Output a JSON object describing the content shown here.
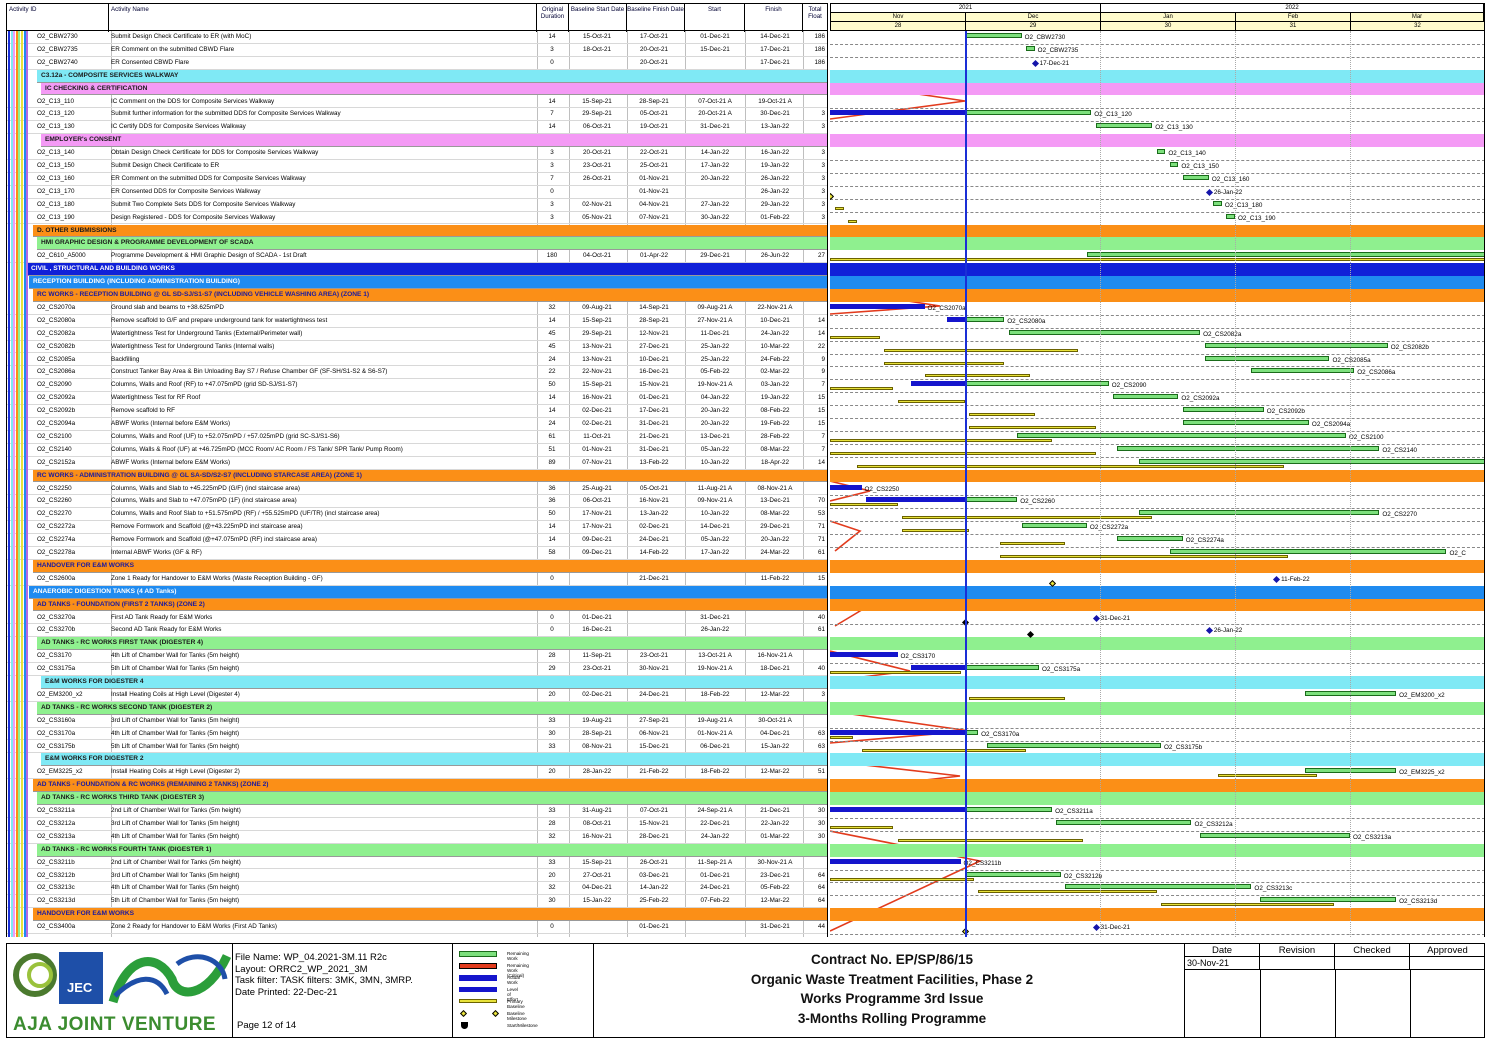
{
  "header": {
    "cols": {
      "activity_id": "Activity ID",
      "activity_name": "Activity Name",
      "orig_duration": "Original Duration",
      "baseline_start": "Baseline Start Date",
      "baseline_finish": "Baseline Finish Date",
      "start": "Start",
      "finish": "Finish",
      "total_float": "Total Float"
    },
    "timeline": {
      "years": [
        "2021",
        "2022"
      ],
      "months": [
        "Nov",
        "Dec",
        "Jan",
        "Feb",
        "Mar"
      ],
      "weeks": [
        "28",
        "29",
        "30",
        "31",
        "32"
      ]
    }
  },
  "colors": {
    "cyan": "#7fe9f5",
    "magenta": "#f49af5",
    "orange": "#fb8f17",
    "green": "#8ff08f",
    "blue": "#1020d8",
    "lightblue": "#1f8bf0",
    "remaining": "#7de07d",
    "critical": "#e23b1d",
    "actual": "#1515cc",
    "baseline": "#e8e23a",
    "data_date_line": "#1a2fd6"
  },
  "rows": [
    {
      "t": "a",
      "id": "O2_CBW2730",
      "name": "Submit Design Check Certificate to ER (with MoC)",
      "od": "14",
      "bs": "15-Oct-21",
      "bf": "17-Oct-21",
      "st": "01-Dec-21",
      "fi": "14-Dec-21",
      "tf": "186"
    },
    {
      "t": "a",
      "id": "O2_CBW2735",
      "name": "ER Comment on the submitted CBWD Flare",
      "od": "3",
      "bs": "18-Oct-21",
      "bf": "20-Oct-21",
      "st": "15-Dec-21",
      "fi": "17-Dec-21",
      "tf": "186"
    },
    {
      "t": "a",
      "id": "O2_CBW2740",
      "name": "ER Consented CBWD Flare",
      "od": "0",
      "bs": "",
      "bf": "20-Oct-21",
      "st": "",
      "fi": "17-Dec-21",
      "tf": "186"
    },
    {
      "t": "b",
      "c": "cyan",
      "x": 30,
      "name": "C3.12a - COMPOSITE SERVICES WALKWAY"
    },
    {
      "t": "b",
      "c": "magenta",
      "x": 34,
      "name": "IC CHECKING & CERTIFICATION"
    },
    {
      "t": "a",
      "id": "O2_C13_110",
      "name": "IC Comment on the DDS for Composite Services Walkway",
      "od": "14",
      "bs": "15-Sep-21",
      "bf": "28-Sep-21",
      "st": "07-Oct-21 A",
      "fi": "19-Oct-21 A",
      "tf": ""
    },
    {
      "t": "a",
      "id": "O2_C13_120",
      "name": "Submit further information for the submitted DDS for Composite Services Walkway",
      "od": "7",
      "bs": "29-Sep-21",
      "bf": "05-Oct-21",
      "st": "20-Oct-21 A",
      "fi": "30-Dec-21",
      "tf": "3"
    },
    {
      "t": "a",
      "id": "O2_C13_130",
      "name": "IC Certify DDS for Composite Services Walkway",
      "od": "14",
      "bs": "06-Oct-21",
      "bf": "19-Oct-21",
      "st": "31-Dec-21",
      "fi": "13-Jan-22",
      "tf": "3"
    },
    {
      "t": "b",
      "c": "magenta",
      "x": 34,
      "name": "EMPLOYER's CONSENT"
    },
    {
      "t": "a",
      "id": "O2_C13_140",
      "name": "Obtain Design Check Certificate for DDS for Composite Services Walkway",
      "od": "3",
      "bs": "20-Oct-21",
      "bf": "22-Oct-21",
      "st": "14-Jan-22",
      "fi": "16-Jan-22",
      "tf": "3"
    },
    {
      "t": "a",
      "id": "O2_C13_150",
      "name": "Submit Design Check Certificate to ER",
      "od": "3",
      "bs": "23-Oct-21",
      "bf": "25-Oct-21",
      "st": "17-Jan-22",
      "fi": "19-Jan-22",
      "tf": "3"
    },
    {
      "t": "a",
      "id": "O2_C13_160",
      "name": "ER Comment on the submitted DDS for Composite Services Walkway",
      "od": "7",
      "bs": "26-Oct-21",
      "bf": "01-Nov-21",
      "st": "20-Jan-22",
      "fi": "26-Jan-22",
      "tf": "3"
    },
    {
      "t": "a",
      "id": "O2_C13_170",
      "name": "ER Consented DDS for Composite Services Walkway",
      "od": "0",
      "bs": "",
      "bf": "01-Nov-21",
      "st": "",
      "fi": "26-Jan-22",
      "tf": "3"
    },
    {
      "t": "a",
      "id": "O2_C13_180",
      "name": "Submit Two Complete Sets DDS for Composite Services Walkway",
      "od": "3",
      "bs": "02-Nov-21",
      "bf": "04-Nov-21",
      "st": "27-Jan-22",
      "fi": "29-Jan-22",
      "tf": "3"
    },
    {
      "t": "a",
      "id": "O2_C13_190",
      "name": "Design Registered - DDS for Composite Services Walkway",
      "od": "3",
      "bs": "05-Nov-21",
      "bf": "07-Nov-21",
      "st": "30-Jan-22",
      "fi": "01-Feb-22",
      "tf": "3"
    },
    {
      "t": "b",
      "c": "orange",
      "x": 26,
      "name": "D. OTHER SUBMISSIONS"
    },
    {
      "t": "b",
      "c": "green",
      "x": 30,
      "name": "HMI GRAPHIC DESIGN & PROGRAMME DEVELOPMENT OF SCADA"
    },
    {
      "t": "a",
      "id": "O2_C610_A5000",
      "name": "Programme Development & HMI Graphic Design of SCADA - 1st Draft",
      "od": "180",
      "bs": "04-Oct-21",
      "bf": "01-Apr-22",
      "st": "29-Dec-21",
      "fi": "26-Jun-22",
      "tf": "27"
    },
    {
      "t": "b",
      "c": "blue",
      "x": 20,
      "name": "CIVIL , STRUCTURAL AND BUILDING WORKS",
      "fg": "#fff"
    },
    {
      "t": "b",
      "c": "lightblue",
      "x": 22,
      "name": "RECEPTION BUILDING (INCLUDING ADMINISTRATION BUILDING)",
      "fg": "#fff"
    },
    {
      "t": "b",
      "c": "orange",
      "x": 26,
      "name": "RC WORKS - RECEPTION BUILDING @ GL SD-SJ/S1-S7 (INCLUDING VEHICLE WASHING AREA) (ZONE 1)",
      "fg": "#1a1aa0"
    },
    {
      "t": "a",
      "id": "O2_CS2070a",
      "name": "Ground slab and beams to +38.625mPD",
      "od": "32",
      "bs": "09-Aug-21",
      "bf": "14-Sep-21",
      "st": "09-Aug-21 A",
      "fi": "22-Nov-21 A",
      "tf": ""
    },
    {
      "t": "a",
      "id": "O2_CS2080a",
      "name": "Remove scaffold to G/F and prepare underground tank for watertightness test",
      "od": "14",
      "bs": "15-Sep-21",
      "bf": "28-Sep-21",
      "st": "27-Nov-21 A",
      "fi": "10-Dec-21",
      "tf": "14"
    },
    {
      "t": "a",
      "id": "O2_CS2082a",
      "name": "Watertightness Test for Underground Tanks (External/Perimeter wall)",
      "od": "45",
      "bs": "29-Sep-21",
      "bf": "12-Nov-21",
      "st": "11-Dec-21",
      "fi": "24-Jan-22",
      "tf": "14"
    },
    {
      "t": "a",
      "id": "O2_CS2082b",
      "name": "Watertightness Test for Underground Tanks (Internal walls)",
      "od": "45",
      "bs": "13-Nov-21",
      "bf": "27-Dec-21",
      "st": "25-Jan-22",
      "fi": "10-Mar-22",
      "tf": "22"
    },
    {
      "t": "a",
      "id": "O2_CS2085a",
      "name": "Backfilling",
      "od": "24",
      "bs": "13-Nov-21",
      "bf": "10-Dec-21",
      "st": "25-Jan-22",
      "fi": "24-Feb-22",
      "tf": "9"
    },
    {
      "t": "a",
      "id": "O2_CS2086a",
      "name": "Construct Tanker Bay Area & Bin Unloading Bay S7 / Refuse Chamber GF (SF-SH/S1-S2 & S6-S7)",
      "od": "22",
      "bs": "22-Nov-21",
      "bf": "16-Dec-21",
      "st": "05-Feb-22",
      "fi": "02-Mar-22",
      "tf": "9"
    },
    {
      "t": "a",
      "id": "O2_CS2090",
      "name": "Columns, Walls and Roof (RF) to +47.075mPD (grid SD-SJ/S1-S7)",
      "od": "50",
      "bs": "15-Sep-21",
      "bf": "15-Nov-21",
      "st": "19-Nov-21 A",
      "fi": "03-Jan-22",
      "tf": "7"
    },
    {
      "t": "a",
      "id": "O2_CS2092a",
      "name": "Watertightness Test for RF Roof",
      "od": "14",
      "bs": "16-Nov-21",
      "bf": "01-Dec-21",
      "st": "04-Jan-22",
      "fi": "19-Jan-22",
      "tf": "15"
    },
    {
      "t": "a",
      "id": "O2_CS2092b",
      "name": "Remove scaffold to RF",
      "od": "14",
      "bs": "02-Dec-21",
      "bf": "17-Dec-21",
      "st": "20-Jan-22",
      "fi": "08-Feb-22",
      "tf": "15"
    },
    {
      "t": "a",
      "id": "O2_CS2094a",
      "name": "ABWF Works (Internal before E&M Works)",
      "od": "24",
      "bs": "02-Dec-21",
      "bf": "31-Dec-21",
      "st": "20-Jan-22",
      "fi": "19-Feb-22",
      "tf": "15"
    },
    {
      "t": "a",
      "id": "O2_CS2100",
      "name": "Columns, Walls and Roof (UF) to +52.075mPD / +57.025mPD (grid SC-SJ/S1-S6)",
      "od": "61",
      "bs": "11-Oct-21",
      "bf": "21-Dec-21",
      "st": "13-Dec-21",
      "fi": "28-Feb-22",
      "tf": "7"
    },
    {
      "t": "a",
      "id": "O2_CS2140",
      "name": "Columns, Walls & Roof (UF) at +46.725mPD (MCC Room/ AC Room / FS Tank/ SPR Tank/ Pump Room)",
      "od": "51",
      "bs": "01-Nov-21",
      "bf": "31-Dec-21",
      "st": "05-Jan-22",
      "fi": "08-Mar-22",
      "tf": "7"
    },
    {
      "t": "a",
      "id": "O2_CS2152a",
      "name": "ABWF Works (Internal before E&M Works)",
      "od": "89",
      "bs": "07-Nov-21",
      "bf": "13-Feb-22",
      "st": "10-Jan-22",
      "fi": "18-Apr-22",
      "tf": "14"
    },
    {
      "t": "b",
      "c": "orange",
      "x": 26,
      "name": "RC WORKS - ADMINISTRATION BUILDING @ GL SA-SD/S2-S7 (INCLUDING STARCASE AREA) (ZONE 1)",
      "fg": "#1a1aa0"
    },
    {
      "t": "a",
      "id": "O2_CS2250",
      "name": "Columns, Walls and Slab to +45.225mPD (G/F) (incl staircase area)",
      "od": "36",
      "bs": "25-Aug-21",
      "bf": "05-Oct-21",
      "st": "11-Aug-21 A",
      "fi": "08-Nov-21 A",
      "tf": ""
    },
    {
      "t": "a",
      "id": "O2_CS2260",
      "name": "Columns, Walls and Slab to +47.075mPD (1F) (incl staircase area)",
      "od": "36",
      "bs": "06-Oct-21",
      "bf": "16-Nov-21",
      "st": "09-Nov-21 A",
      "fi": "13-Dec-21",
      "tf": "70"
    },
    {
      "t": "a",
      "id": "O2_CS2270",
      "name": "Columns, Walls and Roof Slab to +51.575mPD (RF) / +55.525mPD (UF/TR) (incl staircase area)",
      "od": "50",
      "bs": "17-Nov-21",
      "bf": "13-Jan-22",
      "st": "10-Jan-22",
      "fi": "08-Mar-22",
      "tf": "53"
    },
    {
      "t": "a",
      "id": "O2_CS2272a",
      "name": "Remove Formwork and Scaffold (@+43.225mPD incl staircase area)",
      "od": "14",
      "bs": "17-Nov-21",
      "bf": "02-Dec-21",
      "st": "14-Dec-21",
      "fi": "29-Dec-21",
      "tf": "71"
    },
    {
      "t": "a",
      "id": "O2_CS2274a",
      "name": "Remove Formwork and Scaffold (@+47.075mPD (RF) incl staircase area)",
      "od": "14",
      "bs": "09-Dec-21",
      "bf": "24-Dec-21",
      "st": "05-Jan-22",
      "fi": "20-Jan-22",
      "tf": "71"
    },
    {
      "t": "a",
      "id": "O2_CS2278a",
      "name": "Internal ABWF Works (GF & RF)",
      "od": "58",
      "bs": "09-Dec-21",
      "bf": "14-Feb-22",
      "st": "17-Jan-22",
      "fi": "24-Mar-22",
      "tf": "61"
    },
    {
      "t": "b",
      "c": "orange",
      "x": 26,
      "name": "HANDOVER FOR E&M WORKS",
      "fg": "#1a1aa0"
    },
    {
      "t": "a",
      "id": "O2_CS2600a",
      "name": "Zone 1 Ready for Handover to E&M Works (Waste Reception Building - GF)",
      "od": "0",
      "bs": "",
      "bf": "21-Dec-21",
      "st": "",
      "fi": "11-Feb-22",
      "tf": "15"
    },
    {
      "t": "b",
      "c": "lightblue",
      "x": 22,
      "name": "ANAEROBIC DIGESTION TANKS (4 AD Tanks)",
      "fg": "#fff"
    },
    {
      "t": "b",
      "c": "orange",
      "x": 26,
      "name": "AD TANKS - FOUNDATION (FIRST 2 TANKS) (ZONE 2)",
      "fg": "#1a1aa0"
    },
    {
      "t": "a",
      "id": "O2_CS3270a",
      "name": "First AD Tank Ready for E&M Works",
      "od": "0",
      "bs": "01-Dec-21",
      "bf": "",
      "st": "31-Dec-21",
      "fi": "",
      "tf": "40"
    },
    {
      "t": "a",
      "id": "O2_CS3270b",
      "name": "Second AD Tank Ready for E&M Works",
      "od": "0",
      "bs": "16-Dec-21",
      "bf": "",
      "st": "26-Jan-22",
      "fi": "",
      "tf": "61"
    },
    {
      "t": "b",
      "c": "green",
      "x": 30,
      "name": "AD TANKS - RC WORKS FIRST TANK (DIGESTER 4)"
    },
    {
      "t": "a",
      "id": "O2_CS3170",
      "name": "4th Lift of Chamber Wall for Tanks (5m height)",
      "od": "28",
      "bs": "11-Sep-21",
      "bf": "23-Oct-21",
      "st": "13-Oct-21 A",
      "fi": "16-Nov-21 A",
      "tf": ""
    },
    {
      "t": "a",
      "id": "O2_CS3175a",
      "name": "5th Lift of Chamber Wall for Tanks (5m height)",
      "od": "29",
      "bs": "23-Oct-21",
      "bf": "30-Nov-21",
      "st": "19-Nov-21 A",
      "fi": "18-Dec-21",
      "tf": "40"
    },
    {
      "t": "b",
      "c": "cyan",
      "x": 34,
      "name": "E&M WORKS FOR DIGESTER 4"
    },
    {
      "t": "a",
      "id": "O2_EM3200_x2",
      "name": "Install Heating Coils at High Level (Digester 4)",
      "od": "20",
      "bs": "02-Dec-21",
      "bf": "24-Dec-21",
      "st": "18-Feb-22",
      "fi": "12-Mar-22",
      "tf": "3"
    },
    {
      "t": "b",
      "c": "green",
      "x": 30,
      "name": "AD TANKS - RC WORKS SECOND TANK (DIGESTER 2)"
    },
    {
      "t": "a",
      "id": "O2_CS3160a",
      "name": "3rd Lift of Chamber Wall for Tanks (5m height)",
      "od": "33",
      "bs": "19-Aug-21",
      "bf": "27-Sep-21",
      "st": "19-Aug-21 A",
      "fi": "30-Oct-21 A",
      "tf": ""
    },
    {
      "t": "a",
      "id": "O2_CS3170a",
      "name": "4th Lift of Chamber Wall for Tanks (5m height)",
      "od": "30",
      "bs": "28-Sep-21",
      "bf": "06-Nov-21",
      "st": "01-Nov-21 A",
      "fi": "04-Dec-21",
      "tf": "63"
    },
    {
      "t": "a",
      "id": "O2_CS3175b",
      "name": "5th Lift of Chamber Wall for Tanks (5m height)",
      "od": "33",
      "bs": "08-Nov-21",
      "bf": "15-Dec-21",
      "st": "06-Dec-21",
      "fi": "15-Jan-22",
      "tf": "63"
    },
    {
      "t": "b",
      "c": "cyan",
      "x": 34,
      "name": "E&M WORKS FOR DIGESTER 2"
    },
    {
      "t": "a",
      "id": "O2_EM3225_x2",
      "name": "Install Heating Coils at High Level (Digester 2)",
      "od": "20",
      "bs": "28-Jan-22",
      "bf": "21-Feb-22",
      "st": "18-Feb-22",
      "fi": "12-Mar-22",
      "tf": "51"
    },
    {
      "t": "b",
      "c": "orange",
      "x": 26,
      "name": "AD TANKS - FOUNDATION  & RC WORKS (REMAINING 2 TANKS) (ZONE 2)",
      "fg": "#1a1aa0"
    },
    {
      "t": "b",
      "c": "green",
      "x": 30,
      "name": "AD TANKS - RC WORKS THIRD TANK (DIGESTER 3)"
    },
    {
      "t": "a",
      "id": "O2_CS3211a",
      "name": "2nd Lift of Chamber Wall for Tanks (5m height)",
      "od": "33",
      "bs": "31-Aug-21",
      "bf": "07-Oct-21",
      "st": "24-Sep-21 A",
      "fi": "21-Dec-21",
      "tf": "30"
    },
    {
      "t": "a",
      "id": "O2_CS3212a",
      "name": "3rd Lift of Chamber Wall for Tanks (5m height)",
      "od": "28",
      "bs": "08-Oct-21",
      "bf": "15-Nov-21",
      "st": "22-Dec-21",
      "fi": "22-Jan-22",
      "tf": "30"
    },
    {
      "t": "a",
      "id": "O2_CS3213a",
      "name": "4th Lift of Chamber Wall for Tanks (5m height)",
      "od": "32",
      "bs": "16-Nov-21",
      "bf": "28-Dec-21",
      "st": "24-Jan-22",
      "fi": "01-Mar-22",
      "tf": "30"
    },
    {
      "t": "b",
      "c": "green",
      "x": 30,
      "name": "AD TANKS - RC WORKS FOURTH TANK (DIGESTER 1)"
    },
    {
      "t": "a",
      "id": "O2_CS3211b",
      "name": "2nd Lift of Chamber Wall for Tanks (5m height)",
      "od": "33",
      "bs": "15-Sep-21",
      "bf": "26-Oct-21",
      "st": "11-Sep-21 A",
      "fi": "30-Nov-21 A",
      "tf": ""
    },
    {
      "t": "a",
      "id": "O2_CS3212b",
      "name": "3rd Lift of Chamber Wall for Tanks (5m height)",
      "od": "20",
      "bs": "27-Oct-21",
      "bf": "03-Dec-21",
      "st": "01-Dec-21",
      "fi": "23-Dec-21",
      "tf": "64"
    },
    {
      "t": "a",
      "id": "O2_CS3213c",
      "name": "4th Lift of Chamber Wall for Tanks (5m height)",
      "od": "32",
      "bs": "04-Dec-21",
      "bf": "14-Jan-22",
      "st": "24-Dec-21",
      "fi": "05-Feb-22",
      "tf": "64"
    },
    {
      "t": "a",
      "id": "O2_CS3213d",
      "name": "5th Lift of Chamber Wall for Tanks (5m height)",
      "od": "30",
      "bs": "15-Jan-22",
      "bf": "25-Feb-22",
      "st": "07-Feb-22",
      "fi": "12-Mar-22",
      "tf": "64"
    },
    {
      "t": "b",
      "c": "orange",
      "x": 26,
      "name": "HANDOVER FOR E&M WORKS",
      "fg": "#1a1aa0"
    },
    {
      "t": "a",
      "id": "O2_CS3400a",
      "name": "Zone 2 Ready for Handover to E&M Works (First AD Tanks)",
      "od": "0",
      "bs": "",
      "bf": "01-Dec-21",
      "st": "",
      "fi": "31-Dec-21",
      "tf": "44"
    }
  ],
  "gantt_labels": [
    {
      "r": 0,
      "t": "O2_CBW2730"
    },
    {
      "r": 1,
      "t": "O2_CBW2735"
    },
    {
      "r": 2,
      "t": "17-Dec-21"
    },
    {
      "r": 6,
      "t": "O2_C13_120"
    },
    {
      "r": 7,
      "t": "O2_C13_130"
    },
    {
      "r": 9,
      "t": "O2_C13_140"
    },
    {
      "r": 10,
      "t": "O2_C13_150"
    },
    {
      "r": 11,
      "t": "O2_C13_160"
    },
    {
      "r": 12,
      "t": "26-Jan-22"
    },
    {
      "r": 13,
      "t": "O2_C13_180"
    },
    {
      "r": 14,
      "t": "O2_C13_190"
    },
    {
      "r": 21,
      "t": "O2_CS2070a"
    },
    {
      "r": 22,
      "t": "O2_CS2080a"
    },
    {
      "r": 23,
      "t": "O2_CS2082a"
    },
    {
      "r": 24,
      "t": "O2_CS2082b"
    },
    {
      "r": 25,
      "t": "O2_CS2085a"
    },
    {
      "r": 26,
      "t": "O2_CS2086a"
    },
    {
      "r": 27,
      "t": "O2_CS2090"
    },
    {
      "r": 28,
      "t": "O2_CS2092a"
    },
    {
      "r": 29,
      "t": "O2_CS2092b"
    },
    {
      "r": 30,
      "t": "O2_CS2094a"
    },
    {
      "r": 31,
      "t": "O2_CS2100"
    },
    {
      "r": 32,
      "t": "O2_CS2140"
    },
    {
      "r": 35,
      "t": "O2_CS2250"
    },
    {
      "r": 36,
      "t": "O2_CS2260"
    },
    {
      "r": 37,
      "t": "O2_CS2270"
    },
    {
      "r": 38,
      "t": "O2_CS2272a"
    },
    {
      "r": 39,
      "t": "O2_CS2274a"
    },
    {
      "r": 40,
      "t": "O2_C"
    },
    {
      "r": 42,
      "t": "11-Feb-22"
    },
    {
      "r": 45,
      "t": "31-Dec-21"
    },
    {
      "r": 46,
      "t": "26-Jan-22"
    },
    {
      "r": 48,
      "t": "O2_CS3170"
    },
    {
      "r": 49,
      "t": "O2_CS3175a"
    },
    {
      "r": 51,
      "t": "O2_EM3200_x2"
    },
    {
      "r": 53,
      "t": "O2_CS3160a"
    },
    {
      "r": 54,
      "t": "O2_CS3170a"
    },
    {
      "r": 55,
      "t": "O2_CS3175b"
    },
    {
      "r": 57,
      "t": "O2_EM3225_x2"
    },
    {
      "r": 60,
      "t": "O2_CS3211a"
    },
    {
      "r": 61,
      "t": "O2_CS3212a"
    },
    {
      "r": 62,
      "t": "O2_CS3213a"
    },
    {
      "r": 64,
      "t": "O2_CS3211b"
    },
    {
      "r": 65,
      "t": "O2_CS3212b"
    },
    {
      "r": 66,
      "t": "O2_CS3213c"
    },
    {
      "r": 67,
      "t": "O2_CS3213d"
    },
    {
      "r": 69,
      "t": "31-Dec-21"
    }
  ],
  "footer": {
    "logo_text": "AJA JOINT VENTURE",
    "logo_jec": "JEC",
    "file_name": "File Name: WP_04.2021-3M.11 R2c",
    "layout": "Layout: ORRC2_WP_2021_3M",
    "task_filter": "Task filter: TASK filters: 3MK, 3MN, 3MRP.",
    "date_printed": "Date Printed: 22-Dec-21",
    "page": "Page 12 of 14",
    "legend": [
      "Remaining Work",
      "Remaining Work (Critical)",
      "Actual Work",
      "Level of Effort",
      "Primary Baseline",
      "Baseline Milestone",
      "Start/Milestone"
    ],
    "title_lines": [
      "Contract No. EP/SP/86/15",
      "Organic Waste Treatment Facilities, Phase 2",
      "Works Programme 3rd Issue",
      "3-Months Rolling Programme"
    ],
    "rev_headers": [
      "Date",
      "Revision",
      "Checked",
      "Approved"
    ],
    "rev_date": "30-Nov-21"
  }
}
